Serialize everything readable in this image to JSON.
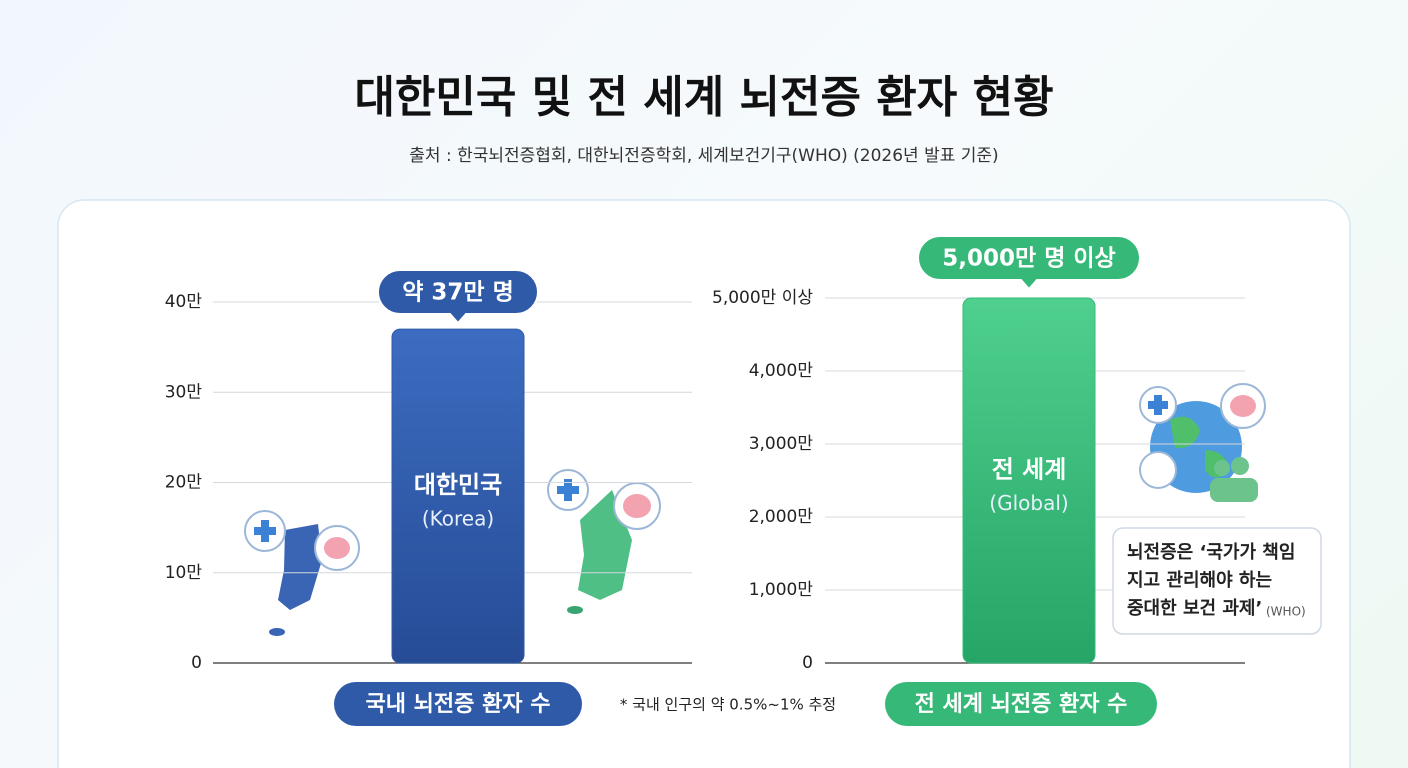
{
  "header": {
    "title": "대한민국 및 전 세계 뇌전증 환자 현황",
    "subtitle": "출처 : 한국뇌전증협회, 대한뇌전증학회, 세계보건기구(WHO) (2026년 발표 기준)"
  },
  "chart_data": [
    {
      "type": "bar",
      "categories": [
        "대한민국"
      ],
      "category_notes": [
        "(Korea)"
      ],
      "values": [
        37
      ],
      "value_labels": [
        "약 37만 명"
      ],
      "color": "#2f5aa8",
      "ylim": [
        0,
        40
      ],
      "yticks": [
        0,
        {
          "value": 10,
          "label": "10만"
        },
        {
          "value": 20,
          "label": "20만"
        },
        {
          "value": 30,
          "label": "30만"
        },
        {
          "value": 40,
          "label": "40만"
        }
      ],
      "grid": true,
      "xlabel": "국내 뇌전증 환자 수",
      "note": "* 국내 인구의 약 0.5%~1% 추정"
    },
    {
      "type": "bar",
      "categories": [
        "전 세계"
      ],
      "category_notes": [
        "(Global)"
      ],
      "values": [
        5000
      ],
      "value_labels": [
        "5,000만 명 이상"
      ],
      "color": "#36b978",
      "ylim": [
        0,
        5000
      ],
      "yticks": [
        0,
        {
          "value": 1000,
          "label": "1,000만"
        },
        {
          "value": 2000,
          "label": "2,000만"
        },
        {
          "value": 3000,
          "label": "3,000만"
        },
        {
          "value": 4000,
          "label": "4,000만"
        },
        {
          "value": 5000,
          "label": "5,000만 이상"
        }
      ],
      "grid": true,
      "xlabel": "전 세계 뇌전증 환자 수",
      "annotation": {
        "lines": [
          "뇌전증은 ‘국가가 책임",
          "지고 관리해야 하는",
          "중대한 보건 과제’"
        ],
        "source": "(WHO)"
      }
    }
  ]
}
